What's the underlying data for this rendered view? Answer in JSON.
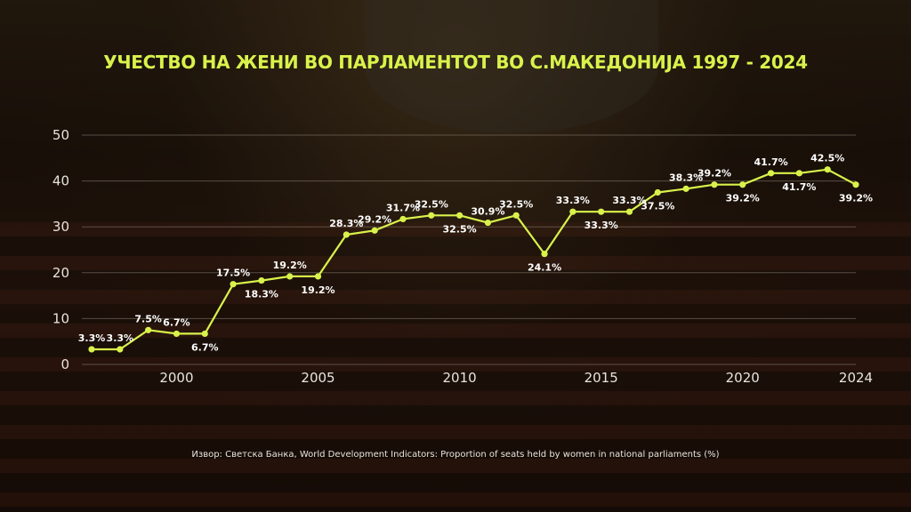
{
  "colors": {
    "accent": "#d9f24b",
    "text": "#ffffff",
    "grid": "#8a8070"
  },
  "chart_data": {
    "type": "line",
    "title": "УЧЕСТВО НА ЖЕНИ ВО ПАРЛАМЕНТОТ ВО С.МАКЕДОНИЈА 1997 - 2024",
    "xlabel": "",
    "ylabel": "",
    "ylim": [
      0,
      50
    ],
    "xlim": [
      1997,
      2024
    ],
    "y_ticks": [
      0,
      10,
      20,
      30,
      40,
      50
    ],
    "x_ticks": [
      2000,
      2005,
      2010,
      2015,
      2020,
      2024
    ],
    "grid": true,
    "x": [
      1997,
      1998,
      1999,
      2000,
      2001,
      2002,
      2003,
      2004,
      2005,
      2006,
      2007,
      2008,
      2009,
      2010,
      2011,
      2012,
      2013,
      2014,
      2015,
      2016,
      2017,
      2018,
      2019,
      2020,
      2021,
      2022,
      2023,
      2024
    ],
    "values": [
      3.3,
      3.3,
      7.5,
      6.7,
      6.7,
      17.5,
      18.3,
      19.2,
      19.2,
      28.3,
      29.2,
      31.7,
      32.5,
      32.5,
      30.9,
      32.5,
      24.1,
      33.3,
      33.3,
      33.3,
      37.5,
      38.3,
      39.2,
      39.2,
      41.7,
      41.7,
      42.5,
      39.2
    ],
    "labels": [
      "3.3%",
      "3.3%",
      "7.5%",
      "6.7%",
      "6.7%",
      "17.5%",
      "18.3%",
      "19.2%",
      "19.2%",
      "28.3%",
      "29.2%",
      "31.7%",
      "32.5%",
      "32.5%",
      "30.9%",
      "32.5%",
      "24.1%",
      "33.3%",
      "33.3%",
      "33.3%",
      "37.5%",
      "38.3%",
      "39.2%",
      "39.2%",
      "41.7%",
      "41.7%",
      "42.5%",
      "39.2%"
    ],
    "label_pos": [
      "above",
      "above",
      "above",
      "above",
      "below",
      "above",
      "below",
      "above",
      "below",
      "above",
      "above",
      "above",
      "above",
      "below",
      "above",
      "above",
      "below",
      "above",
      "below",
      "above",
      "below",
      "above",
      "above",
      "below",
      "above",
      "below",
      "above",
      "below"
    ]
  },
  "source": "Извор: Светска Банка, World Development Indicators: Proportion of seats held by women in national parliaments (%)"
}
